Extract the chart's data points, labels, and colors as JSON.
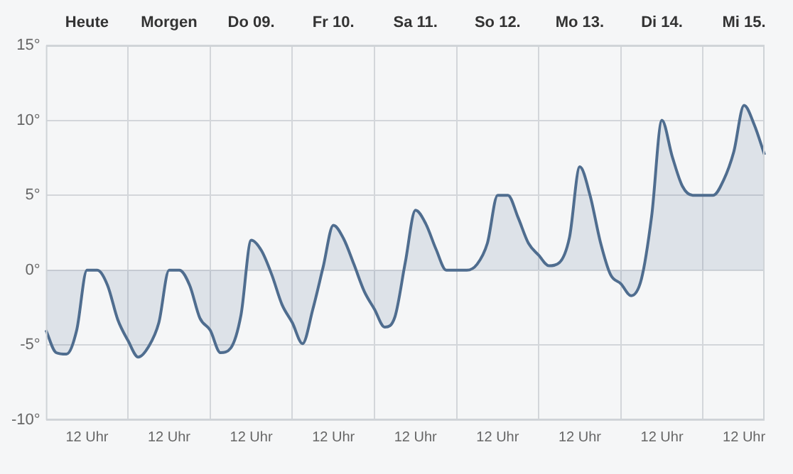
{
  "chart_data": {
    "type": "area",
    "categories": [
      null,
      null,
      null,
      null,
      "12 Uhr",
      null,
      null,
      null,
      null,
      null,
      null,
      null,
      "12 Uhr",
      null,
      null,
      null,
      null,
      null,
      null,
      null,
      "12 Uhr",
      null,
      null,
      null,
      null,
      null,
      null,
      null,
      "12 Uhr",
      null,
      null,
      null,
      null,
      null,
      null,
      null,
      "12 Uhr",
      null,
      null,
      null,
      null,
      null,
      null,
      null,
      "12 Uhr",
      null,
      null,
      null,
      null,
      null,
      null,
      null,
      "12 Uhr",
      null,
      null,
      null,
      null,
      null,
      null,
      null,
      "12 Uhr",
      null,
      null,
      null,
      null,
      null,
      null,
      null,
      "12 Uhr",
      null,
      null
    ],
    "series": [
      {
        "color": "#4f6d8f",
        "values": [
          -4,
          -5.5,
          -5.6,
          -4,
          0,
          0,
          -1,
          -3.3,
          -4.7,
          -5.8,
          -5.1,
          -3.5,
          0,
          0,
          -1,
          -3.2,
          -4,
          -5.5,
          -5.2,
          -3,
          2,
          1.3,
          -0.3,
          -2.3,
          -3.5,
          -4.9,
          -2.6,
          0.2,
          3,
          2.1,
          0.4,
          -1.4,
          -2.6,
          -3.8,
          -3.1,
          0.5,
          4,
          3.1,
          1.4,
          0,
          0,
          0,
          0.4,
          1.8,
          5,
          5,
          3.5,
          1.8,
          1,
          0.3,
          0.5,
          2.2,
          6.9,
          5,
          1.9,
          -0.3,
          -0.9,
          -1.7,
          -0.6,
          3.6,
          10,
          7.6,
          5.6,
          5,
          5,
          5,
          6,
          7.9,
          11,
          9.7,
          7.7
        ]
      }
    ],
    "ylim": [
      -10,
      15
    ],
    "yticks": [
      {
        "value": -10,
        "label": "-10°"
      },
      {
        "value": -5,
        "label": "-5°"
      },
      {
        "value": 0,
        "label": "0°"
      },
      {
        "value": 5,
        "label": "5°"
      },
      {
        "value": 10,
        "label": "10°"
      },
      {
        "value": 15,
        "label": "15°"
      }
    ],
    "annotations": [
      "Heute",
      "Morgen",
      "Do 09.",
      "Fr 10.",
      "Sa 11.",
      "So 12.",
      "Mo 13.",
      "Di 14.",
      "Mi 15."
    ],
    "grid": true,
    "legend": false,
    "marker": "none",
    "line_style": "solid"
  }
}
